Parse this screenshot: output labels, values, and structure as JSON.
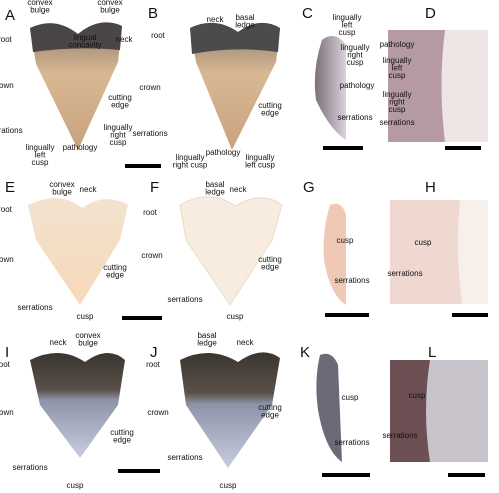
{
  "panels": [
    {
      "letter": "A",
      "labels": [
        [
          "convex",
          "bulge"
        ],
        [
          "lingual",
          "concavity"
        ],
        [
          "convex",
          "bulge"
        ],
        [
          "neck"
        ],
        [
          "root"
        ],
        [
          "crown"
        ],
        [
          "cutting",
          "edge"
        ],
        [
          "serrations"
        ],
        [
          "lingually",
          "left",
          "cusp"
        ],
        [
          "pathology"
        ],
        [
          "lingually",
          "right",
          "cusp"
        ]
      ]
    },
    {
      "letter": "B",
      "labels": [
        [
          "neck"
        ],
        [
          "basal",
          "ledge"
        ],
        [
          "root"
        ],
        [
          "crown"
        ],
        [
          "cutting",
          "edge"
        ],
        [
          "serrations"
        ],
        [
          "lingually",
          "right cusp"
        ],
        [
          "pathology"
        ],
        [
          "lingually",
          "left cusp"
        ]
      ]
    },
    {
      "letter": "C",
      "labels": [
        [
          "lingually",
          "left",
          "cusp"
        ],
        [
          "lingually",
          "right",
          "cusp"
        ],
        [
          "pathology"
        ],
        [
          "serrations"
        ]
      ]
    },
    {
      "letter": "D",
      "labels": [
        [
          "pathology"
        ],
        [
          "lingually",
          "left",
          "cusp"
        ],
        [
          "lingually",
          "right",
          "cusp"
        ],
        [
          "serrations"
        ]
      ]
    },
    {
      "letter": "E",
      "labels": [
        [
          "convex",
          "bulge"
        ],
        [
          "neck"
        ],
        [
          "root"
        ],
        [
          "crown"
        ],
        [
          "cutting",
          "edge"
        ],
        [
          "serrations"
        ],
        [
          "cusp"
        ]
      ]
    },
    {
      "letter": "F",
      "labels": [
        [
          "basal",
          "ledge"
        ],
        [
          "neck"
        ],
        [
          "root"
        ],
        [
          "crown"
        ],
        [
          "cutting",
          "edge"
        ],
        [
          "serrations"
        ],
        [
          "cusp"
        ]
      ]
    },
    {
      "letter": "G",
      "labels": [
        [
          "cusp"
        ],
        [
          "serrations"
        ]
      ]
    },
    {
      "letter": "H",
      "labels": [
        [
          "cusp"
        ],
        [
          "serrations"
        ]
      ]
    },
    {
      "letter": "I",
      "labels": [
        [
          "neck"
        ],
        [
          "convex",
          "bulge"
        ],
        [
          "root"
        ],
        [
          "crown"
        ],
        [
          "cutting",
          "edge"
        ],
        [
          "serrations"
        ],
        [
          "cusp"
        ]
      ]
    },
    {
      "letter": "J",
      "labels": [
        [
          "basal",
          "ledge"
        ],
        [
          "neck"
        ],
        [
          "root"
        ],
        [
          "crown"
        ],
        [
          "cutting",
          "edge"
        ],
        [
          "serrations"
        ],
        [
          "cusp"
        ]
      ]
    },
    {
      "letter": "K",
      "labels": [
        [
          "cusp"
        ],
        [
          "serrations"
        ]
      ]
    },
    {
      "letter": "L",
      "labels": [
        [
          "cusp"
        ],
        [
          "serrations"
        ]
      ]
    }
  ]
}
